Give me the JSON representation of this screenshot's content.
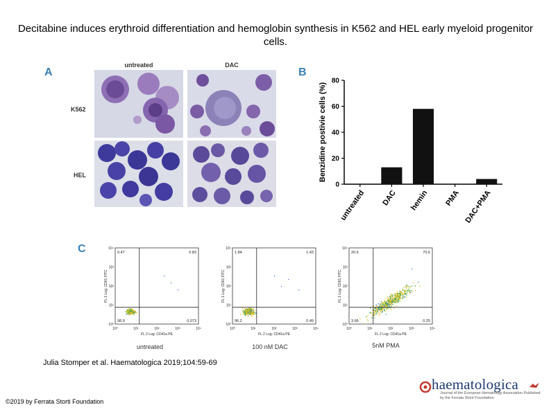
{
  "title": "Decitabine induces erythroid differentiation and hemoglobin synthesis in K562 and HEL early myeloid progenitor cells.",
  "panel_a": {
    "letter": "A",
    "columns": [
      "untreated",
      "DAC"
    ],
    "rows": [
      "K562",
      "HEL"
    ]
  },
  "panel_b": {
    "letter": "B"
  },
  "panel_c": {
    "letter": "C",
    "plots": [
      {
        "caption": "untreated",
        "quadrants": {
          "ul": "0.47",
          "ur": "0.83",
          "ll": "98.9",
          "lr": "0.073"
        },
        "xlabel": "FL 2 Log: CD41a PE",
        "ylabel": "FL 1 Log: CD61 FITC"
      },
      {
        "caption": "100 nM DAC",
        "quadrants": {
          "ul": "1.84",
          "ur": "1.43",
          "ll": "96.2",
          "lr": "0.49"
        },
        "xlabel": "FL 2 Log: CD41a PE",
        "ylabel": "FL 1 Log: CD61 FITC"
      },
      {
        "caption": "5nM PMA",
        "quadrants": {
          "ul": "20.5",
          "ur": "70.6",
          "ll": "3.66",
          "lr": "0.25"
        },
        "xlabel": "FL 2 Log: CD41a PE",
        "ylabel": "FL 1 Log: CD61 FITC"
      }
    ],
    "axis_ticks": [
      "10⁰",
      "10¹",
      "10²",
      "10³",
      "10⁴"
    ]
  },
  "chart_data": {
    "type": "bar",
    "title": "",
    "categories": [
      "untreated",
      "DAC",
      "hemin",
      "PMA",
      "DAC+PMA"
    ],
    "values": [
      0,
      13,
      58,
      0,
      4
    ],
    "xlabel": "",
    "ylabel": "Benzidine postivie cells (%)",
    "ylim": [
      0,
      80
    ],
    "yticks": [
      0,
      20,
      40,
      60,
      80
    ],
    "color": "#111111"
  },
  "citation": "Julia Stomper et al. Haematologica 2019;104:59-69",
  "copyright": "©2019 by Ferrata Storti Foundation",
  "logo": {
    "name": "haematologica",
    "subtitle": "Journal of the European Hematology Association Published by the Ferrata Storti Foundation"
  },
  "colors": {
    "panel_letter": "#3a7fb3",
    "logo": "#1e3a6e"
  }
}
